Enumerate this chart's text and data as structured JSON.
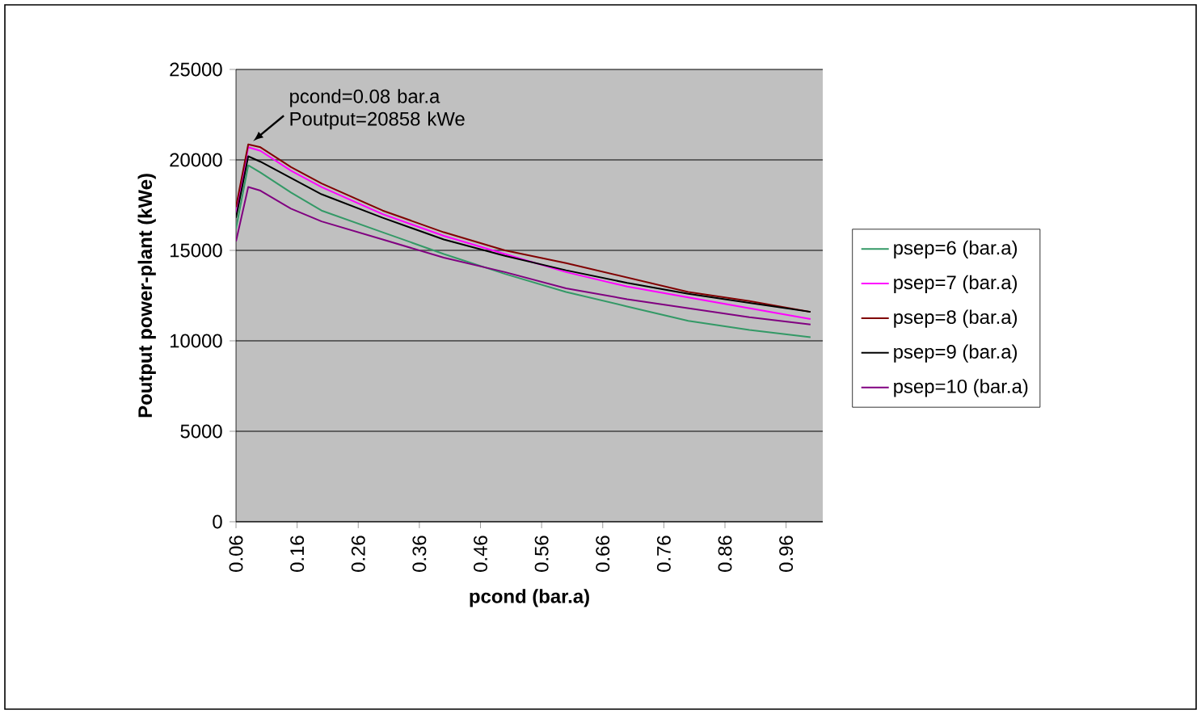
{
  "chart_data": {
    "type": "line",
    "xlabel": "pcond (bar.a)",
    "ylabel": "Poutput power-plant (kWe)",
    "x": [
      0.06,
      0.08,
      0.1,
      0.15,
      0.2,
      0.3,
      0.4,
      0.5,
      0.6,
      0.7,
      0.8,
      0.9,
      1.0
    ],
    "series": [
      {
        "name": "psep=6 (bar.a)",
        "color": "#339966",
        "values": [
          16200,
          19700,
          19300,
          18200,
          17200,
          16000,
          14800,
          13700,
          12700,
          11900,
          11100,
          10600,
          10200
        ]
      },
      {
        "name": "psep=7 (bar.a)",
        "color": "#ff00ff",
        "values": [
          17000,
          20700,
          20500,
          19400,
          18500,
          17000,
          15800,
          14800,
          13800,
          13000,
          12400,
          11800,
          11200
        ]
      },
      {
        "name": "psep=8 (bar.a)",
        "color": "#800000",
        "values": [
          17400,
          20858,
          20700,
          19600,
          18700,
          17200,
          16000,
          15000,
          14300,
          13500,
          12700,
          12200,
          11600
        ]
      },
      {
        "name": "psep=9 (bar.a)",
        "color": "#000000",
        "values": [
          16800,
          20200,
          19900,
          19000,
          18100,
          16800,
          15600,
          14700,
          13900,
          13200,
          12600,
          12100,
          11600
        ]
      },
      {
        "name": "psep=10 (bar.a)",
        "color": "#800080",
        "values": [
          15500,
          18500,
          18300,
          17300,
          16600,
          15600,
          14600,
          13800,
          12900,
          12300,
          11800,
          11300,
          10900
        ]
      }
    ],
    "xlim": [
      0.06,
      1.02
    ],
    "xticks": [
      0.06,
      0.16,
      0.26,
      0.36,
      0.46,
      0.56,
      0.66,
      0.76,
      0.86,
      0.96
    ],
    "ylim": [
      0,
      25000
    ],
    "yticks": [
      0,
      5000,
      10000,
      15000,
      20000,
      25000
    ],
    "grid": "y",
    "legend": "right",
    "marker": "none",
    "line_style": "solid",
    "annotations": [
      {
        "text": "pcond=0.08 bar.a Poutput=20858 kWe",
        "x": 0.08,
        "y": 20858
      }
    ]
  }
}
